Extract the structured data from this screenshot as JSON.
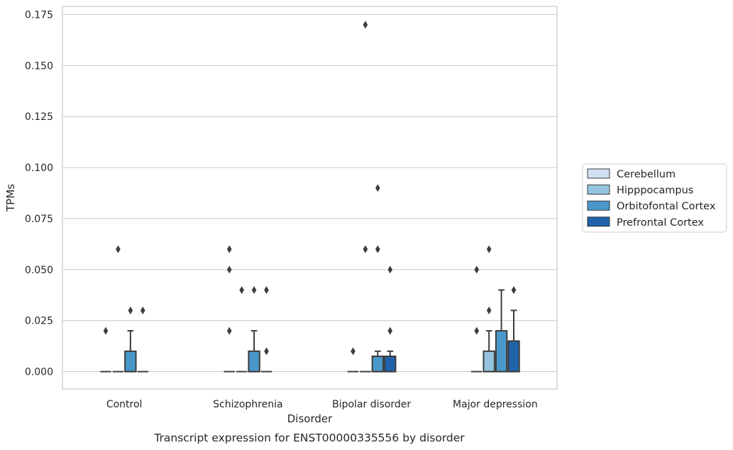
{
  "chart_data": {
    "type": "box",
    "caption": "Transcript expression for ENST00000335556 by disorder",
    "xlabel": "Disorder",
    "ylabel": "TPMs",
    "ylim": [
      -0.0085,
      0.179
    ],
    "yticks": [
      "0.000",
      "0.025",
      "0.050",
      "0.075",
      "0.100",
      "0.125",
      "0.150",
      "0.175"
    ],
    "grid": true,
    "legend_position": "right",
    "categories": [
      "Control",
      "Schizophrenia",
      "Bipolar disorder",
      "Major depression"
    ],
    "series": [
      {
        "name": "Cerebellum",
        "color": "#d0e1f2",
        "boxes": [
          {
            "q1": 0,
            "median": 0,
            "q3": 0,
            "whislo": 0,
            "whishi": 0,
            "fliers": [
              0.02
            ]
          },
          {
            "q1": 0,
            "median": 0,
            "q3": 0,
            "whislo": 0,
            "whishi": 0,
            "fliers": [
              0.02,
              0.05,
              0.06
            ]
          },
          {
            "q1": 0,
            "median": 0,
            "q3": 0,
            "whislo": 0,
            "whishi": 0,
            "fliers": [
              0.01
            ]
          },
          {
            "q1": 0,
            "median": 0,
            "q3": 0,
            "whislo": 0,
            "whishi": 0,
            "fliers": [
              0.02,
              0.05
            ]
          }
        ]
      },
      {
        "name": "Hipppocampus",
        "color": "#94c4df",
        "boxes": [
          {
            "q1": 0,
            "median": 0,
            "q3": 0,
            "whislo": 0,
            "whishi": 0,
            "fliers": [
              0.06
            ]
          },
          {
            "q1": 0,
            "median": 0,
            "q3": 0,
            "whislo": 0,
            "whishi": 0,
            "fliers": [
              0.04
            ]
          },
          {
            "q1": 0,
            "median": 0,
            "q3": 0,
            "whislo": 0,
            "whishi": 0,
            "fliers": [
              0.06,
              0.17
            ]
          },
          {
            "q1": 0,
            "median": 0,
            "q3": 0.01,
            "whislo": 0,
            "whishi": 0.02,
            "fliers": [
              0.03,
              0.06
            ]
          }
        ]
      },
      {
        "name": "Orbitofontal Cortex",
        "color": "#4a98c9",
        "boxes": [
          {
            "q1": 0,
            "median": 0,
            "q3": 0.01,
            "whislo": 0,
            "whishi": 0.02,
            "fliers": [
              0.03
            ]
          },
          {
            "q1": 0,
            "median": 0,
            "q3": 0.01,
            "whislo": 0,
            "whishi": 0.02,
            "fliers": [
              0.04
            ]
          },
          {
            "q1": 0,
            "median": 0,
            "q3": 0.0075,
            "whislo": 0,
            "whishi": 0.01,
            "fliers": [
              0.06,
              0.09
            ]
          },
          {
            "q1": 0,
            "median": 0,
            "q3": 0.02,
            "whislo": 0,
            "whishi": 0.04,
            "fliers": []
          }
        ]
      },
      {
        "name": "Prefrontal Cortex",
        "color": "#2163aa",
        "boxes": [
          {
            "q1": 0,
            "median": 0,
            "q3": 0,
            "whislo": 0,
            "whishi": 0,
            "fliers": [
              0.03
            ]
          },
          {
            "q1": 0,
            "median": 0,
            "q3": 0,
            "whislo": 0,
            "whishi": 0,
            "fliers": [
              0.01,
              0.04
            ]
          },
          {
            "q1": 0,
            "median": 0,
            "q3": 0.0075,
            "whislo": 0,
            "whishi": 0.01,
            "fliers": [
              0.02,
              0.05
            ]
          },
          {
            "q1": 0,
            "median": 0,
            "q3": 0.015,
            "whislo": 0,
            "whishi": 0.03,
            "fliers": [
              0.04
            ]
          }
        ]
      }
    ]
  }
}
